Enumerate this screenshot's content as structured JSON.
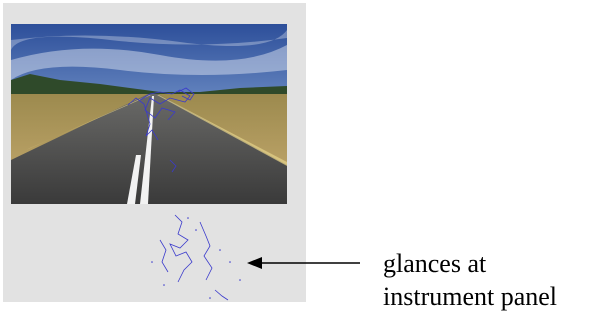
{
  "annotation": {
    "lines": [
      "glances at",
      "instrument panel"
    ]
  }
}
